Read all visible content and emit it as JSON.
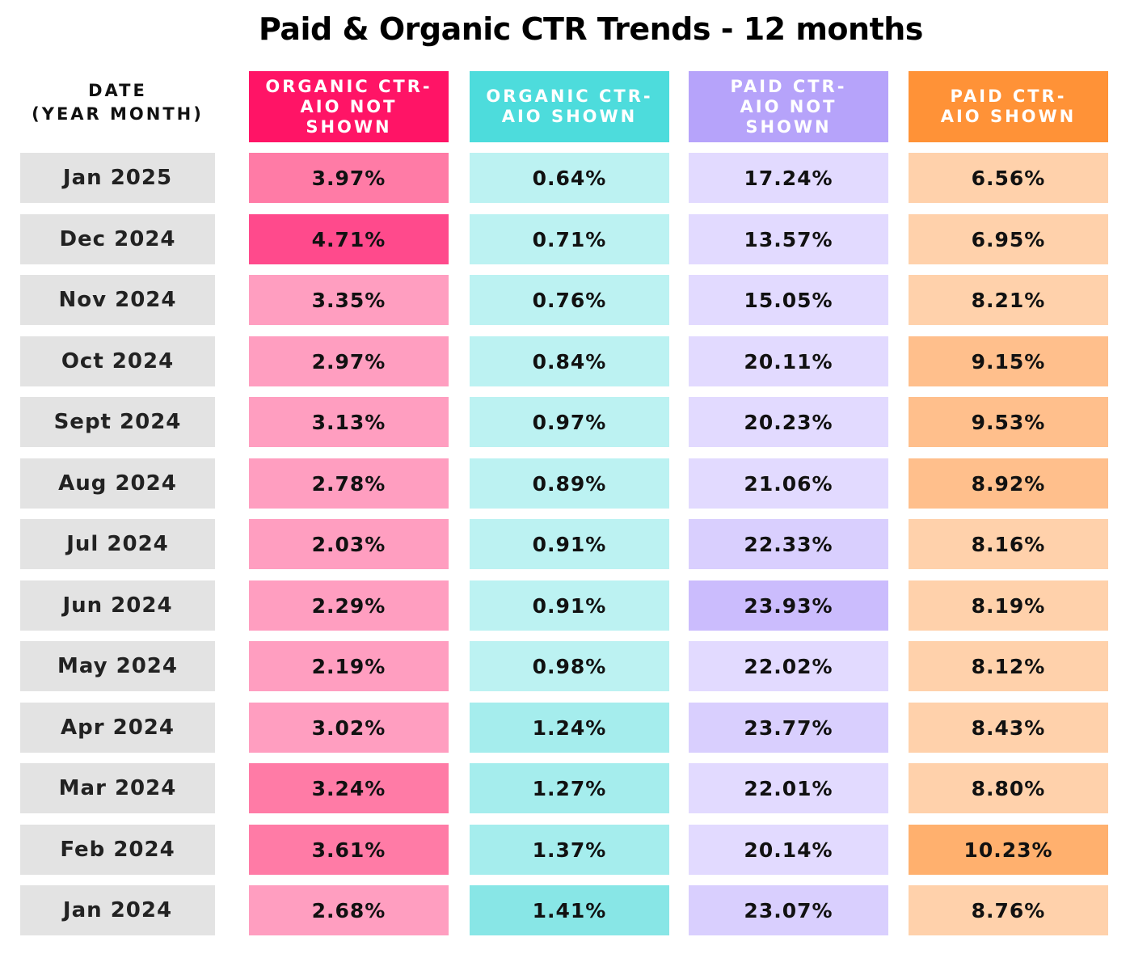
{
  "chart_data": {
    "type": "table",
    "title": "Paid & Organic CTR Trends - 12 months",
    "columns": [
      {
        "label": "DATE\n(YEAR MONTH)"
      },
      {
        "label": "ORGANIC CTR-\nAIO NOT SHOWN",
        "color": "#FF1466"
      },
      {
        "label": "ORGANIC CTR-\nAIO SHOWN",
        "color": "#4DDCDC"
      },
      {
        "label": "PAID CTR-\nAIO NOT SHOWN",
        "color": "#B6A3FA"
      },
      {
        "label": "PAID CTR-\nAIO SHOWN",
        "color": "#FF9237"
      }
    ],
    "rows": [
      {
        "date": "Jan 2025",
        "values": [
          "3.97%",
          "0.64%",
          "17.24%",
          "6.56%"
        ]
      },
      {
        "date": "Dec 2024",
        "values": [
          "4.71%",
          "0.71%",
          "13.57%",
          "6.95%"
        ]
      },
      {
        "date": "Nov 2024",
        "values": [
          "3.35%",
          "0.76%",
          "15.05%",
          "8.21%"
        ]
      },
      {
        "date": "Oct 2024",
        "values": [
          "2.97%",
          "0.84%",
          "20.11%",
          "9.15%"
        ]
      },
      {
        "date": "Sept 2024",
        "values": [
          "3.13%",
          "0.97%",
          "20.23%",
          "9.53%"
        ]
      },
      {
        "date": "Aug 2024",
        "values": [
          "2.78%",
          "0.89%",
          "21.06%",
          "8.92%"
        ]
      },
      {
        "date": "Jul 2024",
        "values": [
          "2.03%",
          "0.91%",
          "22.33%",
          "8.16%"
        ]
      },
      {
        "date": "Jun 2024",
        "values": [
          "2.29%",
          "0.91%",
          "23.93%",
          "8.19%"
        ]
      },
      {
        "date": "May 2024",
        "values": [
          "2.19%",
          "0.98%",
          "22.02%",
          "8.12%"
        ]
      },
      {
        "date": "Apr 2024",
        "values": [
          "3.02%",
          "1.24%",
          "23.77%",
          "8.43%"
        ]
      },
      {
        "date": "Mar 2024",
        "values": [
          "3.24%",
          "1.27%",
          "22.01%",
          "8.80%"
        ]
      },
      {
        "date": "Feb 2024",
        "values": [
          "3.61%",
          "1.37%",
          "20.14%",
          "10.23%"
        ]
      },
      {
        "date": "Jan 2024",
        "values": [
          "2.68%",
          "1.41%",
          "23.07%",
          "8.76%"
        ]
      }
    ],
    "date_cell_color": "#E3E3E3",
    "cell_colors": [
      [
        "#FF7BA6",
        "#BCF2F2",
        "#E2DAFF",
        "#FFD1AB"
      ],
      [
        "#FF4A8C",
        "#BCF2F2",
        "#E2DAFF",
        "#FFD1AB"
      ],
      [
        "#FF9EC0",
        "#BCF2F2",
        "#E2DAFF",
        "#FFD1AB"
      ],
      [
        "#FF9EC0",
        "#BCF2F2",
        "#E2DAFF",
        "#FFBF8C"
      ],
      [
        "#FF9EC0",
        "#BCF2F2",
        "#E2DAFF",
        "#FFBF8C"
      ],
      [
        "#FF9EC0",
        "#BCF2F2",
        "#E2DAFF",
        "#FFBF8C"
      ],
      [
        "#FF9EC0",
        "#BCF2F2",
        "#D9CFFE",
        "#FFD1AB"
      ],
      [
        "#FF9EC0",
        "#BCF2F2",
        "#CBBCFD",
        "#FFD1AB"
      ],
      [
        "#FF9EC0",
        "#BCF2F2",
        "#E2DAFF",
        "#FFD1AB"
      ],
      [
        "#FF9EC0",
        "#A5EDED",
        "#D9CFFE",
        "#FFD1AB"
      ],
      [
        "#FF7BA6",
        "#A5EDED",
        "#E2DAFF",
        "#FFD1AB"
      ],
      [
        "#FF7BA6",
        "#A5EDED",
        "#E2DAFF",
        "#FFB06E"
      ],
      [
        "#FF9EC0",
        "#88E6E6",
        "#D9CFFE",
        "#FFD1AB"
      ]
    ]
  }
}
